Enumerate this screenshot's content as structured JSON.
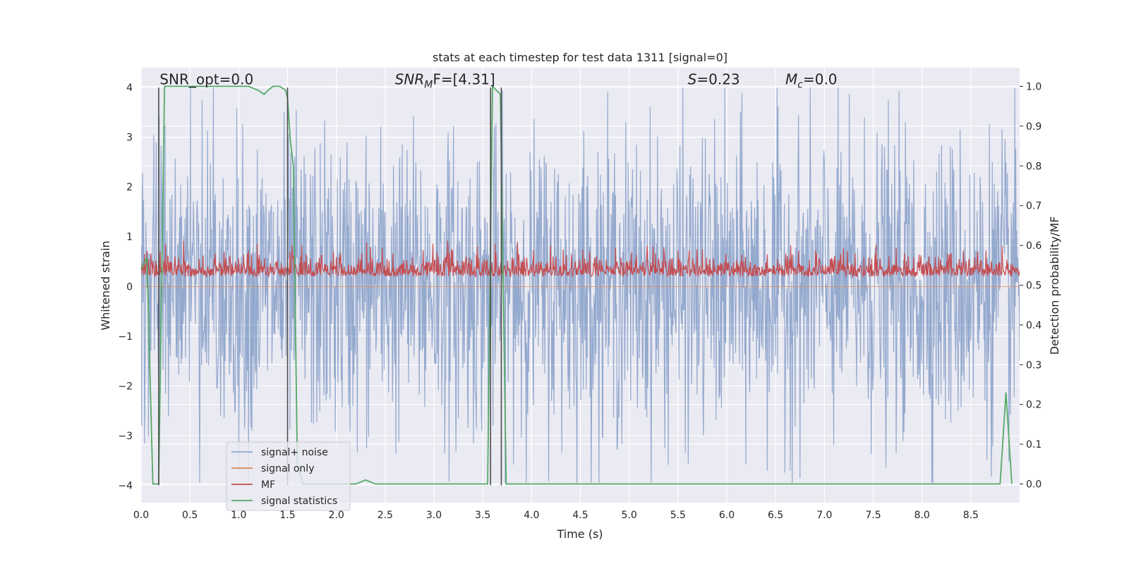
{
  "chart_data": {
    "type": "line",
    "title": "stats at each timestep for test data 1311 [signal=0]",
    "xlabel": "Time (s)",
    "ylabel": "Whitened strain",
    "y2label": "Detection probability/MF",
    "xlim": [
      0,
      9.0
    ],
    "ylim": [
      -4.35,
      4.4
    ],
    "y2lim": [
      -0.047,
      1.047
    ],
    "xticks": [
      0.0,
      0.5,
      1.0,
      1.5,
      2.0,
      2.5,
      3.0,
      3.5,
      4.0,
      4.5,
      5.0,
      5.5,
      6.0,
      6.5,
      7.0,
      7.5,
      8.0,
      8.5
    ],
    "xtick_labels": [
      "0.0",
      "0.5",
      "1.0",
      "1.5",
      "2.0",
      "2.5",
      "3.0",
      "3.5",
      "4.0",
      "4.5",
      "5.0",
      "5.5",
      "6.0",
      "6.5",
      "7.0",
      "7.5",
      "8.0",
      "8.5"
    ],
    "yticks": [
      4,
      3,
      2,
      1,
      0,
      -1,
      -2,
      -3,
      -4
    ],
    "ytick_labels": [
      "4",
      "3",
      "2",
      "1",
      "0",
      "−1",
      "−2",
      "−3",
      "−4"
    ],
    "y2ticks": [
      1.0,
      0.9,
      0.8,
      0.7,
      0.6,
      0.5,
      0.4,
      0.3,
      0.2,
      0.1,
      0.0
    ],
    "y2tick_labels": [
      "1.0",
      "0.9",
      "0.8",
      "0.7",
      "0.6",
      "0.5",
      "0.4",
      "0.3",
      "0.2",
      "0.1",
      "0.0"
    ],
    "grid": true,
    "legend_position": "lower-left",
    "annotations": [
      {
        "text": "SNR_opt=0.0",
        "x": 0.19,
        "y": 4.12
      },
      {
        "base": "SNR",
        "sub": "M",
        "rest": "F=[4.31]",
        "x": 2.6,
        "y": 4.12
      },
      {
        "base": "S",
        "rest": "=0.23",
        "x": 5.6,
        "y": 4.12
      },
      {
        "base": "M",
        "sub": "c",
        "rest": "=0.0",
        "x": 6.6,
        "y": 4.12
      }
    ],
    "series": [
      {
        "name": "signal+ noise",
        "color": "#4c72b0",
        "kind": "noise",
        "axis": "left",
        "sample_rate": 200,
        "amplitude": 1.5
      },
      {
        "name": "signal only",
        "color": "#dd8452",
        "kind": "flat",
        "axis": "left",
        "value": 0
      },
      {
        "name": "MF",
        "color": "#c44e52",
        "kind": "mf",
        "axis": "left",
        "sample_rate": 200,
        "baseline": 0.3,
        "spread": 0.25
      },
      {
        "name": "signal statistics",
        "color": "#55a868",
        "kind": "explicit",
        "axis": "right",
        "x": [
          0.0,
          0.06,
          0.12,
          0.18,
          0.24,
          0.3,
          0.5,
          1.0,
          1.1,
          1.2,
          1.26,
          1.3,
          1.35,
          1.42,
          1.48,
          1.5,
          1.53,
          1.56,
          1.6,
          1.66,
          1.72,
          1.8,
          2.0,
          2.2,
          2.3,
          2.4,
          2.6,
          3.0,
          3.4,
          3.55,
          3.6,
          3.64,
          3.68,
          3.74,
          4.0,
          5.0,
          6.0,
          7.0,
          8.0,
          8.8,
          8.86,
          8.92
        ],
        "y": [
          0.54,
          0.57,
          0.0,
          0.0,
          1.0,
          1.0,
          1.0,
          1.0,
          1.0,
          0.99,
          0.98,
          0.99,
          1.0,
          1.0,
          0.99,
          0.97,
          0.86,
          0.8,
          0.05,
          0.0,
          0.0,
          0.0,
          0.0,
          0.0,
          0.01,
          0.0,
          0.0,
          0.0,
          0.0,
          0.0,
          1.0,
          0.99,
          0.98,
          0.0,
          0.0,
          0.0,
          0.0,
          0.0,
          0.0,
          0.0,
          0.23,
          0.0
        ]
      }
    ],
    "vlines": [
      0.18,
      1.5,
      3.58,
      3.69
    ]
  }
}
